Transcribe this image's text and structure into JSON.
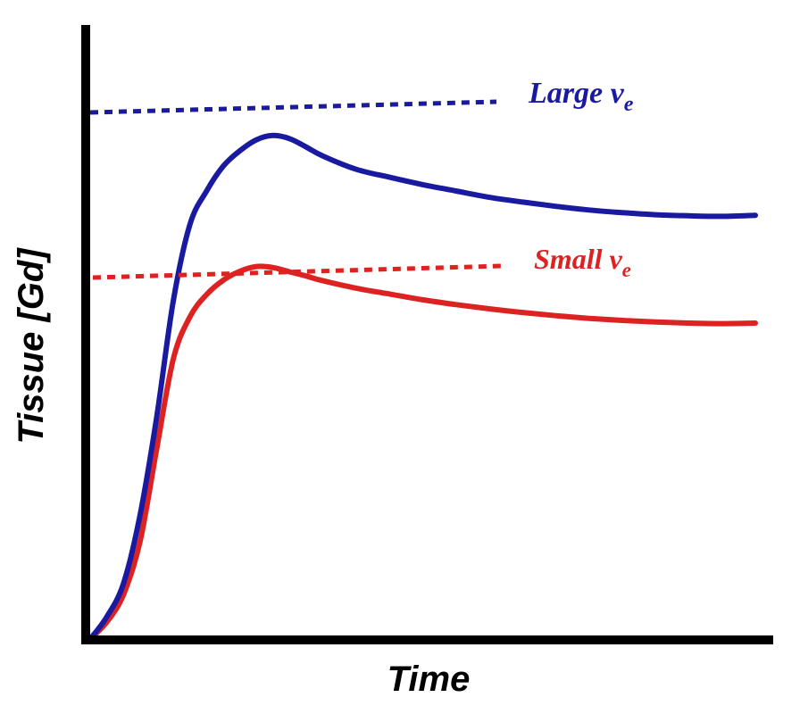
{
  "chart_data": {
    "type": "line",
    "xlabel": "Time",
    "ylabel": "Tissue [Gd]",
    "xlim": [
      0,
      100
    ],
    "ylim": [
      0,
      100
    ],
    "grid": false,
    "legend": "none",
    "series": [
      {
        "name": "Large v",
        "subscript": "e",
        "color": "#1a1aa0",
        "points": [
          [
            0,
            0
          ],
          [
            2.5,
            4.2
          ],
          [
            5,
            10.5
          ],
          [
            7.5,
            23.5
          ],
          [
            10,
            42
          ],
          [
            12.5,
            64
          ],
          [
            15,
            78.5
          ],
          [
            17.5,
            84.8
          ],
          [
            20,
            89.5
          ],
          [
            22.5,
            92.4
          ],
          [
            25,
            94.5
          ],
          [
            27.5,
            95.3
          ],
          [
            30,
            94.7
          ],
          [
            32.5,
            93.1
          ],
          [
            35,
            91.4
          ],
          [
            40,
            88.9
          ],
          [
            45,
            87.4
          ],
          [
            50,
            86.0
          ],
          [
            55,
            84.8
          ],
          [
            60,
            83.6
          ],
          [
            65,
            82.7
          ],
          [
            70,
            81.9
          ],
          [
            75,
            81.2
          ],
          [
            80,
            80.7
          ],
          [
            85,
            80.3
          ],
          [
            90,
            80.1
          ],
          [
            95,
            80.0
          ],
          [
            100,
            80.2
          ]
        ],
        "reference_level": 100
      },
      {
        "name": "Small v",
        "subscript": "e",
        "color": "#dd2222",
        "points": [
          [
            0,
            0
          ],
          [
            2.5,
            3.2
          ],
          [
            5,
            8.4
          ],
          [
            7.5,
            18.5
          ],
          [
            10,
            36
          ],
          [
            12.5,
            53
          ],
          [
            15,
            61
          ],
          [
            17.5,
            65.2
          ],
          [
            20,
            67.9
          ],
          [
            22.5,
            69.6
          ],
          [
            25,
            70.5
          ],
          [
            27.5,
            70.3
          ],
          [
            30,
            69.5
          ],
          [
            32.5,
            68.7
          ],
          [
            35,
            67.8
          ],
          [
            40,
            66.4
          ],
          [
            45,
            65.3
          ],
          [
            50,
            64.2
          ],
          [
            55,
            63.3
          ],
          [
            60,
            62.5
          ],
          [
            65,
            61.8
          ],
          [
            70,
            61.2
          ],
          [
            75,
            60.7
          ],
          [
            80,
            60.3
          ],
          [
            85,
            60.0
          ],
          [
            90,
            59.8
          ],
          [
            95,
            59.7
          ],
          [
            100,
            59.8
          ]
        ],
        "reference_level": 69.2
      }
    ]
  }
}
